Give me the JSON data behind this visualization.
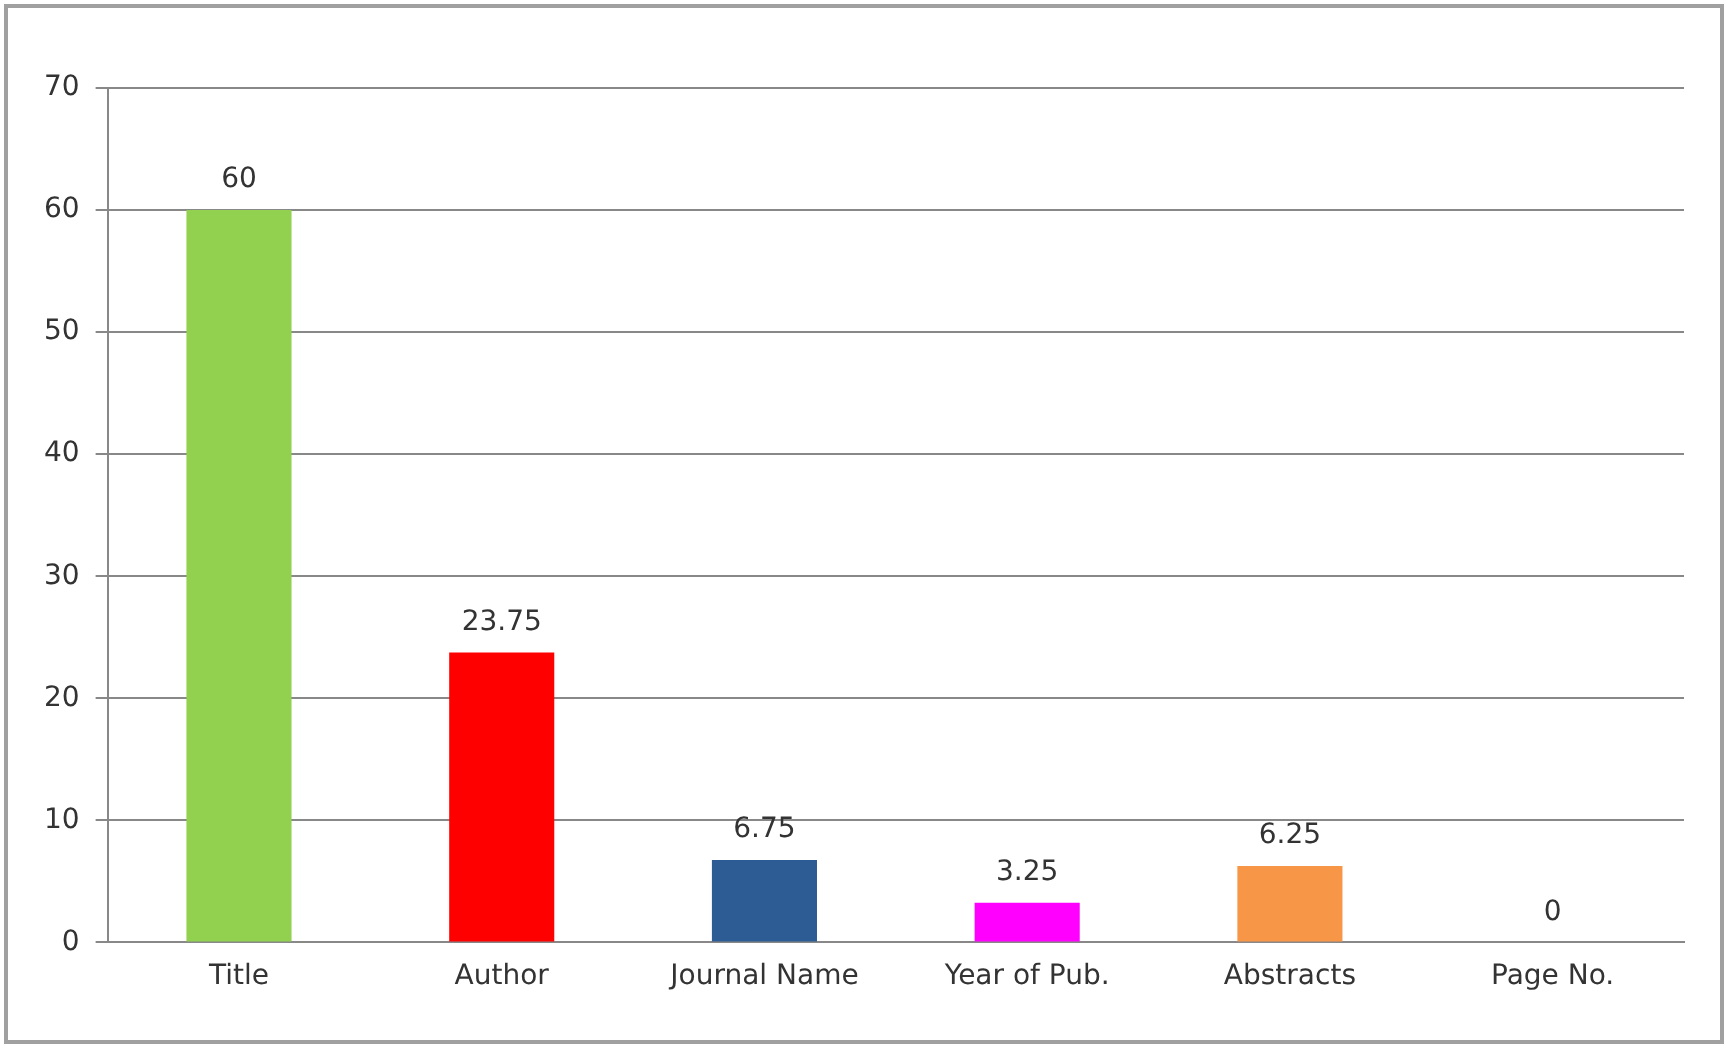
{
  "chart_data": {
    "type": "bar",
    "categories": [
      "Title",
      "Author",
      "Journal Name",
      "Year of Pub.",
      "Abstracts",
      "Page No."
    ],
    "values": [
      60,
      23.75,
      6.75,
      3.25,
      6.25,
      0
    ],
    "colors": [
      "#92d050",
      "#ff0000",
      "#2d5b94",
      "#ff00ff",
      "#f79646",
      "#4f81bd"
    ],
    "ylim": [
      0,
      70
    ],
    "yticks": [
      0,
      10,
      20,
      30,
      40,
      50,
      60,
      70
    ],
    "grid": "y",
    "data_labels": true,
    "legend": false
  }
}
